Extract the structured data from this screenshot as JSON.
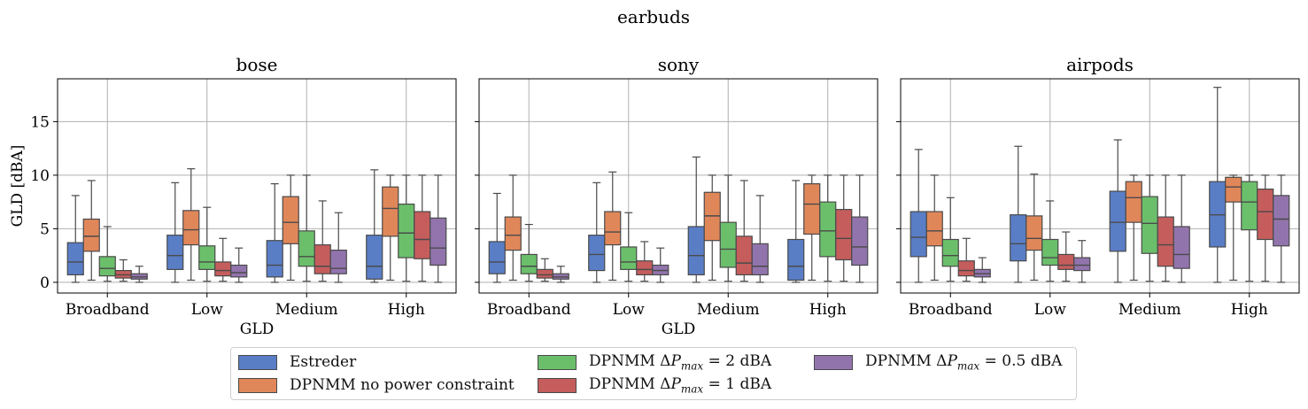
{
  "chart_data": {
    "type": "box",
    "suptitle": "earbuds",
    "categories": [
      "Broadband",
      "Low",
      "Medium",
      "High"
    ],
    "ylabel": "GLD [dBA]",
    "xlabel": "GLD",
    "ylim": [
      -1,
      19
    ],
    "yticks": [
      0,
      5,
      10,
      15
    ],
    "grid": true,
    "legend_position": "bottom-center",
    "series": [
      {
        "name": "Estreder",
        "color": "#5a7ec6"
      },
      {
        "name": "DPNMM no power constraint",
        "color": "#e0875a"
      },
      {
        "name": "DPNMM ΔP_max = 2 dBA",
        "color": "#6bbf6b"
      },
      {
        "name": "DPNMM ΔP_max = 1 dBA",
        "color": "#c55d5d"
      },
      {
        "name": "DPNMM ΔP_max = 0.5 dBA",
        "color": "#9274ad"
      }
    ],
    "panels": [
      {
        "title": "bose",
        "show_ylabel": true,
        "show_xlabel": true,
        "boxes": [
          [
            [
              0.0,
              0.7,
              1.9,
              3.7,
              8.1
            ],
            [
              0.2,
              2.9,
              4.3,
              5.9,
              9.5
            ],
            [
              0.1,
              0.6,
              1.3,
              2.4,
              5.2
            ],
            [
              0.1,
              0.4,
              0.7,
              1.1,
              2.1
            ],
            [
              0.0,
              0.3,
              0.5,
              0.8,
              1.5
            ]
          ],
          [
            [
              0.0,
              1.2,
              2.5,
              4.4,
              9.3
            ],
            [
              0.2,
              3.5,
              4.9,
              6.7,
              10.6
            ],
            [
              0.1,
              1.2,
              1.9,
              3.4,
              7.0
            ],
            [
              0.1,
              0.6,
              1.1,
              1.9,
              4.1
            ],
            [
              0.0,
              0.5,
              0.9,
              1.6,
              3.2
            ]
          ],
          [
            [
              0.0,
              0.5,
              1.6,
              3.9,
              9.2
            ],
            [
              0.2,
              3.6,
              5.6,
              8.0,
              10.0
            ],
            [
              0.1,
              1.5,
              2.4,
              4.8,
              10.0
            ],
            [
              0.1,
              0.8,
              1.5,
              3.5,
              7.6
            ],
            [
              0.0,
              0.8,
              1.3,
              3.0,
              6.5
            ]
          ],
          [
            [
              0.0,
              0.3,
              1.5,
              4.4,
              10.5
            ],
            [
              0.2,
              4.3,
              6.9,
              8.9,
              10.0
            ],
            [
              0.1,
              2.3,
              4.6,
              7.3,
              10.0
            ],
            [
              0.1,
              2.2,
              4.0,
              6.6,
              10.0
            ],
            [
              0.0,
              1.6,
              3.2,
              6.0,
              10.0
            ]
          ]
        ]
      },
      {
        "title": "sony",
        "show_ylabel": false,
        "show_xlabel": true,
        "boxes": [
          [
            [
              0.0,
              0.8,
              1.9,
              3.8,
              8.3
            ],
            [
              0.2,
              3.0,
              4.4,
              6.1,
              10.0
            ],
            [
              0.1,
              0.8,
              1.5,
              2.6,
              5.4
            ],
            [
              0.1,
              0.4,
              0.7,
              1.2,
              2.2
            ],
            [
              0.0,
              0.3,
              0.5,
              0.8,
              1.5
            ]
          ],
          [
            [
              0.0,
              1.1,
              2.6,
              4.4,
              9.3
            ],
            [
              0.2,
              3.5,
              4.7,
              6.6,
              10.3
            ],
            [
              0.1,
              1.2,
              1.9,
              3.3,
              6.5
            ],
            [
              0.1,
              0.7,
              1.2,
              2.0,
              3.8
            ],
            [
              0.0,
              0.7,
              1.1,
              1.6,
              3.2
            ]
          ],
          [
            [
              0.0,
              0.7,
              2.5,
              5.2,
              11.7
            ],
            [
              0.2,
              3.9,
              6.2,
              8.4,
              10.0
            ],
            [
              0.1,
              1.4,
              3.1,
              5.6,
              10.0
            ],
            [
              0.1,
              0.7,
              1.8,
              4.3,
              9.5
            ],
            [
              0.0,
              0.7,
              1.5,
              3.6,
              8.1
            ]
          ],
          [
            [
              0.0,
              0.2,
              1.5,
              4.0,
              9.5
            ],
            [
              0.2,
              4.5,
              7.3,
              9.2,
              10.0
            ],
            [
              0.1,
              2.4,
              4.8,
              7.5,
              10.0
            ],
            [
              0.1,
              2.1,
              4.1,
              6.8,
              10.0
            ],
            [
              0.0,
              1.6,
              3.3,
              6.1,
              10.0
            ]
          ]
        ]
      },
      {
        "title": "airpods",
        "show_ylabel": false,
        "show_xlabel": false,
        "boxes": [
          [
            [
              0.0,
              2.4,
              4.2,
              6.6,
              12.4
            ],
            [
              0.2,
              3.4,
              4.8,
              6.6,
              10.0
            ],
            [
              0.1,
              1.5,
              2.5,
              4.0,
              7.9
            ],
            [
              0.1,
              0.6,
              1.1,
              2.0,
              4.1
            ],
            [
              0.0,
              0.5,
              0.8,
              1.2,
              2.3
            ]
          ],
          [
            [
              0.0,
              2.0,
              3.6,
              6.3,
              12.7
            ],
            [
              0.2,
              3.0,
              4.1,
              6.2,
              10.1
            ],
            [
              0.1,
              1.6,
              2.3,
              4.0,
              7.6
            ],
            [
              0.1,
              1.2,
              1.6,
              2.6,
              4.7
            ],
            [
              0.0,
              1.1,
              1.6,
              2.3,
              3.9
            ]
          ],
          [
            [
              0.0,
              2.9,
              5.6,
              8.5,
              13.3
            ],
            [
              0.2,
              5.6,
              7.9,
              9.4,
              10.0
            ],
            [
              0.1,
              2.7,
              5.5,
              8.0,
              10.0
            ],
            [
              0.1,
              1.5,
              3.5,
              6.1,
              10.0
            ],
            [
              0.0,
              1.3,
              2.6,
              5.2,
              10.0
            ]
          ],
          [
            [
              0.0,
              3.3,
              6.3,
              9.4,
              18.2
            ],
            [
              0.2,
              7.5,
              8.9,
              9.8,
              10.0
            ],
            [
              0.1,
              4.9,
              7.5,
              9.4,
              10.0
            ],
            [
              0.1,
              4.0,
              6.6,
              8.7,
              10.0
            ],
            [
              0.0,
              3.4,
              5.9,
              8.1,
              10.0
            ]
          ]
        ]
      }
    ]
  }
}
